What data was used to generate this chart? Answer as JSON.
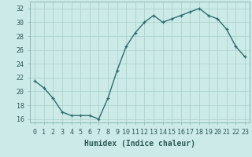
{
  "x": [
    0,
    1,
    2,
    3,
    4,
    5,
    6,
    7,
    8,
    9,
    10,
    11,
    12,
    13,
    14,
    15,
    16,
    17,
    18,
    19,
    20,
    21,
    22,
    23
  ],
  "y": [
    21.5,
    20.5,
    19,
    17,
    16.5,
    16.5,
    16.5,
    16,
    19,
    23,
    26.5,
    28.5,
    30,
    31,
    30,
    30.5,
    31,
    31.5,
    32,
    31,
    30.5,
    29,
    26.5,
    25
  ],
  "line_color": "#2d6e6e",
  "marker": "+",
  "marker_size": 3,
  "bg_color": "#cceae7",
  "grid_color": "#aed4d0",
  "xlabel": "Humidex (Indice chaleur)",
  "xlim": [
    -0.5,
    23.5
  ],
  "ylim": [
    15.5,
    33
  ],
  "yticks": [
    16,
    18,
    20,
    22,
    24,
    26,
    28,
    30,
    32
  ],
  "xticks": [
    0,
    1,
    2,
    3,
    4,
    5,
    6,
    7,
    8,
    9,
    10,
    11,
    12,
    13,
    14,
    15,
    16,
    17,
    18,
    19,
    20,
    21,
    22,
    23
  ],
  "tick_fontsize": 6,
  "xlabel_fontsize": 7,
  "line_width": 1.0,
  "text_color": "#2d5a5a"
}
